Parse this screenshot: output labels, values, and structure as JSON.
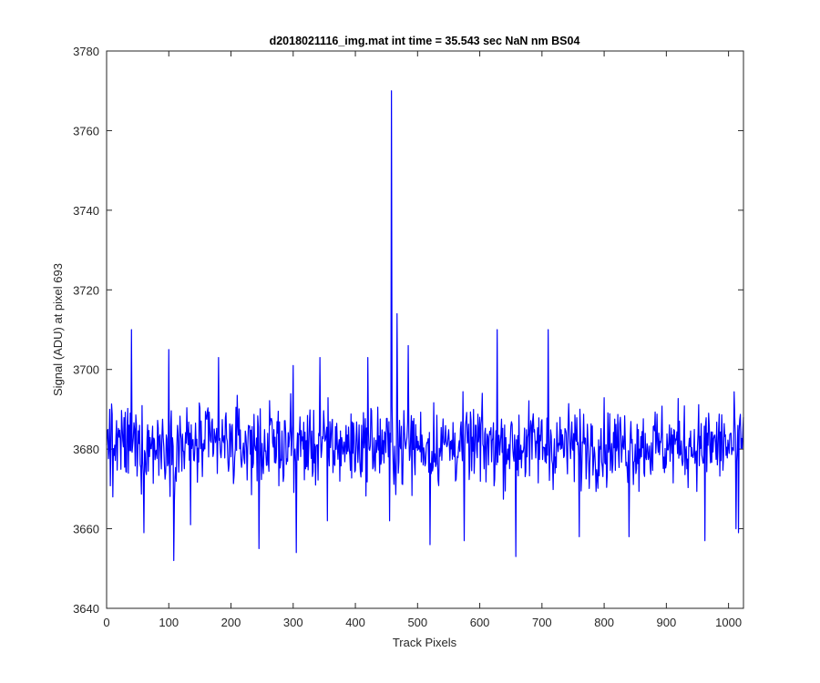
{
  "chart_data": {
    "type": "line",
    "title": "d2018021116_img.mat int time = 35.543 sec  NaN nm BS04",
    "xlabel": "Track Pixels",
    "ylabel": "Signal (ADU) at pixel 693",
    "xlim": [
      0,
      1024
    ],
    "ylim": [
      3640,
      3780
    ],
    "xticks": [
      0,
      100,
      200,
      300,
      400,
      500,
      600,
      700,
      800,
      900,
      1000
    ],
    "yticks": [
      3640,
      3660,
      3680,
      3700,
      3720,
      3740,
      3760,
      3780
    ],
    "grid": false,
    "box": true,
    "line_color": "#0000ff",
    "series": [
      {
        "n_points": 1024,
        "baseline": 3681,
        "noise_range": [
          3660,
          3705
        ],
        "points": [
          [
            0,
            3681
          ],
          [
            5,
            3690
          ],
          [
            10,
            3668
          ],
          [
            20,
            3683
          ],
          [
            40,
            3710
          ],
          [
            60,
            3659
          ],
          [
            100,
            3705
          ],
          [
            108,
            3652
          ],
          [
            135,
            3661
          ],
          [
            180,
            3703
          ],
          [
            245,
            3655
          ],
          [
            300,
            3701
          ],
          [
            305,
            3654
          ],
          [
            343,
            3703
          ],
          [
            355,
            3662
          ],
          [
            420,
            3703
          ],
          [
            455,
            3662
          ],
          [
            458,
            3770
          ],
          [
            461,
            3675
          ],
          [
            467,
            3714
          ],
          [
            485,
            3706
          ],
          [
            520,
            3656
          ],
          [
            575,
            3657
          ],
          [
            628,
            3710
          ],
          [
            658,
            3653
          ],
          [
            710,
            3710
          ],
          [
            760,
            3658
          ],
          [
            840,
            3658
          ],
          [
            962,
            3657
          ],
          [
            1012,
            3660
          ],
          [
            1016,
            3659
          ],
          [
            1024,
            3688
          ]
        ]
      }
    ]
  }
}
